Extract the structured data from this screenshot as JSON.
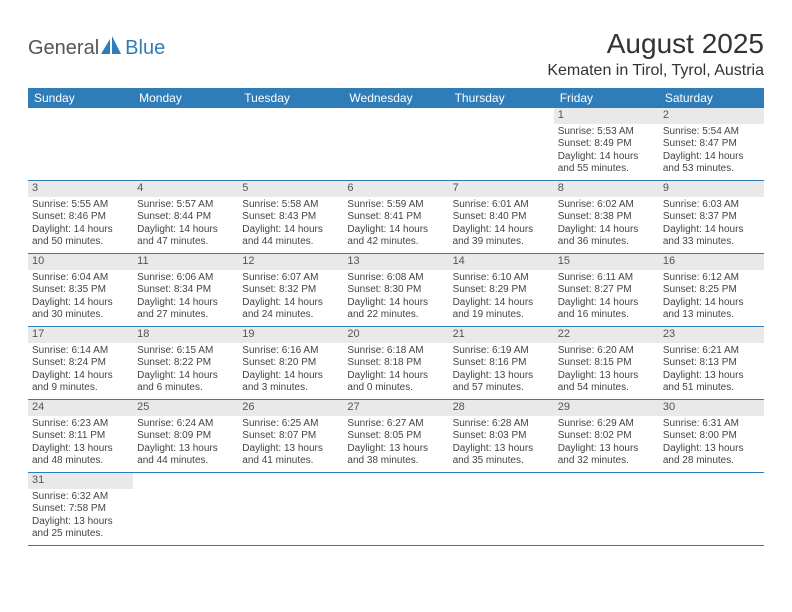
{
  "logo": {
    "general": "General",
    "blue": "Blue"
  },
  "header": {
    "month_title": "August 2025",
    "location": "Kematen in Tirol, Tyrol, Austria"
  },
  "theme": {
    "header_bg": "#2f7db8",
    "header_fg": "#ffffff",
    "daynum_bg": "#e9e9e9",
    "cell_border": "#2f7db8"
  },
  "days_of_week": [
    "Sunday",
    "Monday",
    "Tuesday",
    "Wednesday",
    "Thursday",
    "Friday",
    "Saturday"
  ],
  "weeks": [
    [
      null,
      null,
      null,
      null,
      null,
      {
        "num": "1",
        "sunrise": "Sunrise: 5:53 AM",
        "sunset": "Sunset: 8:49 PM",
        "daylight": "Daylight: 14 hours and 55 minutes."
      },
      {
        "num": "2",
        "sunrise": "Sunrise: 5:54 AM",
        "sunset": "Sunset: 8:47 PM",
        "daylight": "Daylight: 14 hours and 53 minutes."
      }
    ],
    [
      {
        "num": "3",
        "sunrise": "Sunrise: 5:55 AM",
        "sunset": "Sunset: 8:46 PM",
        "daylight": "Daylight: 14 hours and 50 minutes."
      },
      {
        "num": "4",
        "sunrise": "Sunrise: 5:57 AM",
        "sunset": "Sunset: 8:44 PM",
        "daylight": "Daylight: 14 hours and 47 minutes."
      },
      {
        "num": "5",
        "sunrise": "Sunrise: 5:58 AM",
        "sunset": "Sunset: 8:43 PM",
        "daylight": "Daylight: 14 hours and 44 minutes."
      },
      {
        "num": "6",
        "sunrise": "Sunrise: 5:59 AM",
        "sunset": "Sunset: 8:41 PM",
        "daylight": "Daylight: 14 hours and 42 minutes."
      },
      {
        "num": "7",
        "sunrise": "Sunrise: 6:01 AM",
        "sunset": "Sunset: 8:40 PM",
        "daylight": "Daylight: 14 hours and 39 minutes."
      },
      {
        "num": "8",
        "sunrise": "Sunrise: 6:02 AM",
        "sunset": "Sunset: 8:38 PM",
        "daylight": "Daylight: 14 hours and 36 minutes."
      },
      {
        "num": "9",
        "sunrise": "Sunrise: 6:03 AM",
        "sunset": "Sunset: 8:37 PM",
        "daylight": "Daylight: 14 hours and 33 minutes."
      }
    ],
    [
      {
        "num": "10",
        "sunrise": "Sunrise: 6:04 AM",
        "sunset": "Sunset: 8:35 PM",
        "daylight": "Daylight: 14 hours and 30 minutes."
      },
      {
        "num": "11",
        "sunrise": "Sunrise: 6:06 AM",
        "sunset": "Sunset: 8:34 PM",
        "daylight": "Daylight: 14 hours and 27 minutes."
      },
      {
        "num": "12",
        "sunrise": "Sunrise: 6:07 AM",
        "sunset": "Sunset: 8:32 PM",
        "daylight": "Daylight: 14 hours and 24 minutes."
      },
      {
        "num": "13",
        "sunrise": "Sunrise: 6:08 AM",
        "sunset": "Sunset: 8:30 PM",
        "daylight": "Daylight: 14 hours and 22 minutes."
      },
      {
        "num": "14",
        "sunrise": "Sunrise: 6:10 AM",
        "sunset": "Sunset: 8:29 PM",
        "daylight": "Daylight: 14 hours and 19 minutes."
      },
      {
        "num": "15",
        "sunrise": "Sunrise: 6:11 AM",
        "sunset": "Sunset: 8:27 PM",
        "daylight": "Daylight: 14 hours and 16 minutes."
      },
      {
        "num": "16",
        "sunrise": "Sunrise: 6:12 AM",
        "sunset": "Sunset: 8:25 PM",
        "daylight": "Daylight: 14 hours and 13 minutes."
      }
    ],
    [
      {
        "num": "17",
        "sunrise": "Sunrise: 6:14 AM",
        "sunset": "Sunset: 8:24 PM",
        "daylight": "Daylight: 14 hours and 9 minutes."
      },
      {
        "num": "18",
        "sunrise": "Sunrise: 6:15 AM",
        "sunset": "Sunset: 8:22 PM",
        "daylight": "Daylight: 14 hours and 6 minutes."
      },
      {
        "num": "19",
        "sunrise": "Sunrise: 6:16 AM",
        "sunset": "Sunset: 8:20 PM",
        "daylight": "Daylight: 14 hours and 3 minutes."
      },
      {
        "num": "20",
        "sunrise": "Sunrise: 6:18 AM",
        "sunset": "Sunset: 8:18 PM",
        "daylight": "Daylight: 14 hours and 0 minutes."
      },
      {
        "num": "21",
        "sunrise": "Sunrise: 6:19 AM",
        "sunset": "Sunset: 8:16 PM",
        "daylight": "Daylight: 13 hours and 57 minutes."
      },
      {
        "num": "22",
        "sunrise": "Sunrise: 6:20 AM",
        "sunset": "Sunset: 8:15 PM",
        "daylight": "Daylight: 13 hours and 54 minutes."
      },
      {
        "num": "23",
        "sunrise": "Sunrise: 6:21 AM",
        "sunset": "Sunset: 8:13 PM",
        "daylight": "Daylight: 13 hours and 51 minutes."
      }
    ],
    [
      {
        "num": "24",
        "sunrise": "Sunrise: 6:23 AM",
        "sunset": "Sunset: 8:11 PM",
        "daylight": "Daylight: 13 hours and 48 minutes."
      },
      {
        "num": "25",
        "sunrise": "Sunrise: 6:24 AM",
        "sunset": "Sunset: 8:09 PM",
        "daylight": "Daylight: 13 hours and 44 minutes."
      },
      {
        "num": "26",
        "sunrise": "Sunrise: 6:25 AM",
        "sunset": "Sunset: 8:07 PM",
        "daylight": "Daylight: 13 hours and 41 minutes."
      },
      {
        "num": "27",
        "sunrise": "Sunrise: 6:27 AM",
        "sunset": "Sunset: 8:05 PM",
        "daylight": "Daylight: 13 hours and 38 minutes."
      },
      {
        "num": "28",
        "sunrise": "Sunrise: 6:28 AM",
        "sunset": "Sunset: 8:03 PM",
        "daylight": "Daylight: 13 hours and 35 minutes."
      },
      {
        "num": "29",
        "sunrise": "Sunrise: 6:29 AM",
        "sunset": "Sunset: 8:02 PM",
        "daylight": "Daylight: 13 hours and 32 minutes."
      },
      {
        "num": "30",
        "sunrise": "Sunrise: 6:31 AM",
        "sunset": "Sunset: 8:00 PM",
        "daylight": "Daylight: 13 hours and 28 minutes."
      }
    ],
    [
      {
        "num": "31",
        "sunrise": "Sunrise: 6:32 AM",
        "sunset": "Sunset: 7:58 PM",
        "daylight": "Daylight: 13 hours and 25 minutes."
      },
      null,
      null,
      null,
      null,
      null,
      null
    ]
  ]
}
